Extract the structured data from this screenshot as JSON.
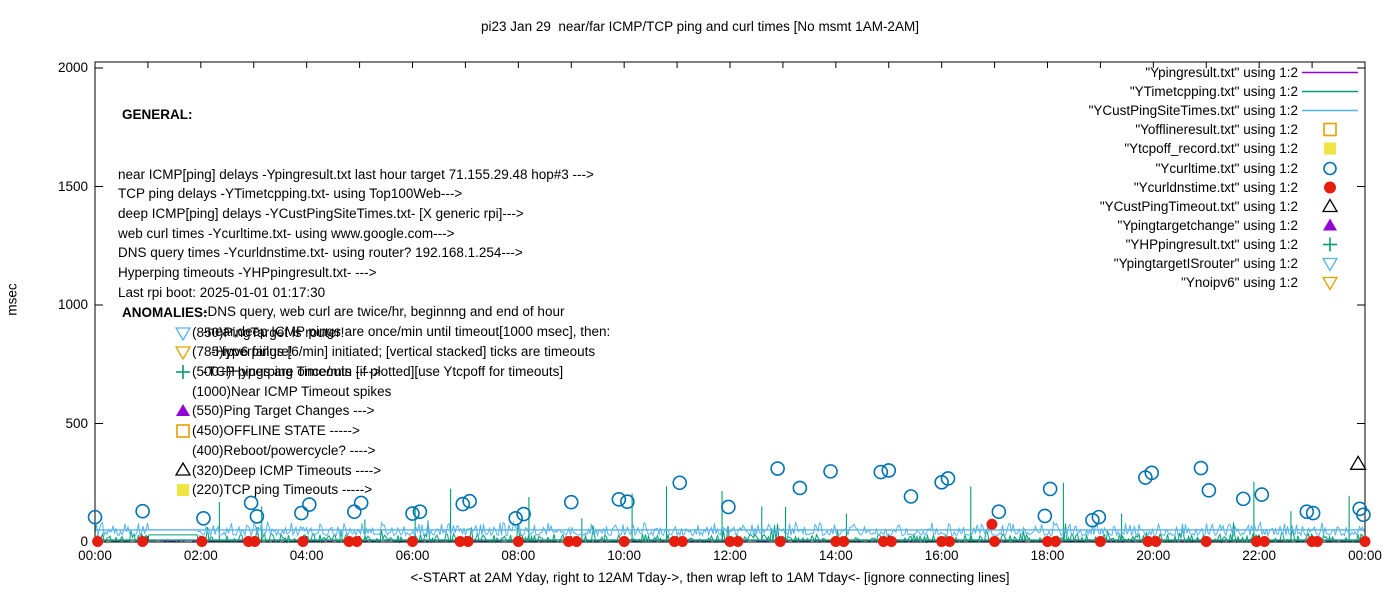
{
  "title": "pi23 Jan 29  near/far ICMP/TCP ping and curl times [No msmt 1AM-2AM]",
  "axes": {
    "ylabel": "msec",
    "xlabel": "<-START at 2AM Yday, right to 12AM Tday->, then wrap left to 1AM Tday<- [ignore connecting lines]",
    "y_ticks": [
      "0",
      "500",
      "1000",
      "1500",
      "2000"
    ],
    "x_ticks": [
      "00:00",
      "02:00",
      "04:00",
      "06:00",
      "08:00",
      "10:00",
      "12:00",
      "14:00",
      "16:00",
      "18:00",
      "20:00",
      "22:00",
      "00:00"
    ]
  },
  "general": {
    "header": "GENERAL:",
    "lines": [
      {
        "text": "near ICMP[ping] delays -Ypingresult.txt last hour target 71.155.29.48 hop#3 --->",
        "indent": 0
      },
      {
        "text": "TCP ping delays -YTimetcpping.txt- using Top100Web--->",
        "indent": 0
      },
      {
        "text": "deep ICMP[ping] delays -YCustPingSiteTimes.txt- [X generic rpi]--->",
        "indent": 0
      },
      {
        "text": "web curl times -Ycurltime.txt- using www.google.com--->",
        "indent": 0
      },
      {
        "text": "DNS query times -Ycurldnstime.txt- using router? 192.168.1.254--->",
        "indent": 0
      },
      {
        "text": "Hyperping timeouts -YHPpingresult.txt- --->",
        "indent": 0
      },
      {
        "text": "Last rpi boot: 2025-01-01 01:17:30",
        "indent": 0
      },
      {
        "text": "-DNS query, web curl are twice/hr, beginnng and end of hour",
        "indent": 1
      },
      {
        "text": "-near,deep ICMP pings are once/min until timeout[1000 msec], then:",
        "indent": 1
      },
      {
        "text": "-Hyperpings [6/min] initiated; [vertical stacked] ticks are timeouts",
        "indent": 2
      },
      {
        "text": "-TCP pings are once/min [if plotted][use Ytcpoff for timeouts]",
        "indent": 1
      }
    ]
  },
  "anomalies": {
    "header": "ANOMALIES:",
    "rows": [
      {
        "marker": "triangle-down-open",
        "color": "#56b4e9",
        "text": "(850)PingTarget is router!"
      },
      {
        "marker": "triangle-down-open",
        "color": "#e69f00",
        "text": "(785)ipv6 failure!"
      },
      {
        "marker": "plus",
        "color": "#009e73",
        "text": "(500+)Hyperping Timeouts ---->"
      },
      {
        "marker": "none",
        "color": "",
        "text": "(1000)Near ICMP Timeout spikes"
      },
      {
        "marker": "triangle-filled",
        "color": "#9400d3",
        "text": "(550)Ping Target Changes --->"
      },
      {
        "marker": "square-open",
        "color": "#e69f00",
        "text": "(450)OFFLINE STATE ----->"
      },
      {
        "marker": "none",
        "color": "",
        "text": "(400)Reboot/powercycle? ---->"
      },
      {
        "marker": "triangle-open",
        "color": "#000000",
        "text": "(320)Deep ICMP Timeouts ---->"
      },
      {
        "marker": "square-filled",
        "color": "#f0e442",
        "text": "(220)TCP ping Timeouts ----->"
      }
    ]
  },
  "legend": {
    "rows": [
      {
        "label": "\"Ypingresult.txt\" using 1:2",
        "marker": "line",
        "color": "#9400d3"
      },
      {
        "label": "\"YTimetcpping.txt\" using 1:2",
        "marker": "line",
        "color": "#009e73"
      },
      {
        "label": "\"YCustPingSiteTimes.txt\" using 1:2",
        "marker": "line",
        "color": "#56b4e9"
      },
      {
        "label": "\"Yofflineresult.txt\" using 1:2",
        "marker": "square-open",
        "color": "#e69f00"
      },
      {
        "label": "\"Ytcpoff_record.txt\" using 1:2",
        "marker": "square-filled",
        "color": "#f0e442"
      },
      {
        "label": "\"Ycurltime.txt\" using 1:2",
        "marker": "circle-open",
        "color": "#0072b2"
      },
      {
        "label": "\"Ycurldnstime.txt\" using 1:2",
        "marker": "circle-filled",
        "color": "#e51e10"
      },
      {
        "label": "\"YCustPingTimeout.txt\" using 1:2",
        "marker": "triangle-open",
        "color": "#000000"
      },
      {
        "label": "\"Ypingtargetchange\" using 1:2",
        "marker": "triangle-filled",
        "color": "#9400d3"
      },
      {
        "label": "\"YHPpingresult.txt\" using 1:2",
        "marker": "plus",
        "color": "#009e73"
      },
      {
        "label": "\"YpingtargetISrouter\" using 1:2",
        "marker": "triangle-down-open",
        "color": "#56b4e9"
      },
      {
        "label": "\"Ynoipv6\" using 1:2",
        "marker": "triangle-down-open",
        "color": "#e69f00"
      }
    ]
  },
  "chart_data": {
    "type": "line",
    "title": "pi23 Jan 29  near/far ICMP/TCP ping and curl times [No msmt 1AM-2AM]",
    "xlabel": "<-START at 2AM Yday, right to 12AM Tday->, then wrap left to 1AM Tday<- [ignore connecting lines]",
    "ylabel": "msec",
    "x_axis": {
      "tick_hours": [
        0,
        2,
        4,
        6,
        8,
        10,
        12,
        14,
        16,
        18,
        20,
        22,
        24
      ],
      "minor_tick_every_hours": 1,
      "span_hours": 24
    },
    "y_axis": {
      "tick_values": [
        0,
        500,
        1000,
        1500,
        2000
      ],
      "range": [
        0,
        2000
      ]
    },
    "grid": false,
    "legend_position": "inside-top-right",
    "no_measurement_gap_hours": [
      1.0,
      1.95
    ],
    "series": [
      {
        "name": "\"Ypingresult.txt\" using 1:2",
        "style": "line",
        "color": "#9400d3",
        "description": "near ICMP ping delays, flat baseline",
        "noise_band_msec": [
          0,
          9
        ]
      },
      {
        "name": "\"YTimetcpping.txt\" using 1:2",
        "style": "line",
        "color": "#009e73",
        "description": "TCP ping delays, grassy baseline with spikes",
        "noise_band_msec": [
          0,
          36
        ],
        "gap_flat_value": 30,
        "floor_line": 8,
        "spikes": [
          [
            2.35,
            168
          ],
          [
            3.15,
            150
          ],
          [
            5.1,
            95
          ],
          [
            6.05,
            150
          ],
          [
            6.72,
            225
          ],
          [
            8.2,
            190
          ],
          [
            9.2,
            100
          ],
          [
            10.15,
            205
          ],
          [
            10.8,
            235
          ],
          [
            11.85,
            215
          ],
          [
            12.6,
            150
          ],
          [
            13.05,
            148
          ],
          [
            14.2,
            120
          ],
          [
            16.55,
            235
          ],
          [
            18.3,
            250
          ],
          [
            19.4,
            120
          ],
          [
            21.9,
            255
          ],
          [
            22.6,
            130
          ],
          [
            23.7,
            195
          ]
        ]
      },
      {
        "name": "\"YCustPingSiteTimes.txt\" using 1:2",
        "style": "line",
        "color": "#56b4e9",
        "description": "deep ICMP ping delays, grassy band plus flat line",
        "noise_band_msec": [
          28,
          95
        ],
        "flat_level": 51
      },
      {
        "name": "\"Yofflineresult.txt\" using 1:2",
        "style": "square-open",
        "color": "#e69f00",
        "points": []
      },
      {
        "name": "\"Ytcpoff_record.txt\" using 1:2",
        "style": "square-filled",
        "color": "#f0e442",
        "points": []
      },
      {
        "name": "\"Ycurltime.txt\" using 1:2",
        "style": "circle-open",
        "color": "#0072b2",
        "points": [
          [
            0.0,
            105
          ],
          [
            0.9,
            130
          ],
          [
            2.05,
            100
          ],
          [
            2.95,
            165
          ],
          [
            3.06,
            108
          ],
          [
            3.9,
            122
          ],
          [
            4.05,
            158
          ],
          [
            4.9,
            128
          ],
          [
            5.03,
            165
          ],
          [
            6.0,
            120
          ],
          [
            6.14,
            128
          ],
          [
            6.95,
            160
          ],
          [
            7.08,
            172
          ],
          [
            7.95,
            100
          ],
          [
            8.1,
            118
          ],
          [
            9.0,
            168
          ],
          [
            9.9,
            180
          ],
          [
            10.06,
            170
          ],
          [
            11.05,
            250
          ],
          [
            11.97,
            148
          ],
          [
            12.9,
            310
          ],
          [
            13.32,
            228
          ],
          [
            13.9,
            298
          ],
          [
            14.85,
            295
          ],
          [
            15.0,
            302
          ],
          [
            15.42,
            192
          ],
          [
            16.0,
            252
          ],
          [
            16.12,
            268
          ],
          [
            17.08,
            128
          ],
          [
            17.95,
            110
          ],
          [
            18.05,
            224
          ],
          [
            18.85,
            92
          ],
          [
            18.97,
            105
          ],
          [
            19.85,
            272
          ],
          [
            19.97,
            292
          ],
          [
            20.9,
            312
          ],
          [
            21.05,
            218
          ],
          [
            21.7,
            182
          ],
          [
            22.05,
            200
          ],
          [
            22.9,
            128
          ],
          [
            23.02,
            122
          ],
          [
            23.9,
            140
          ],
          [
            23.97,
            115
          ]
        ]
      },
      {
        "name": "\"Ycurldnstime.txt\" using 1:2",
        "style": "circle-filled",
        "color": "#e51e10",
        "points": [
          [
            0.05,
            2
          ],
          [
            0.9,
            2
          ],
          [
            2.02,
            2
          ],
          [
            2.9,
            2
          ],
          [
            3.02,
            2
          ],
          [
            3.93,
            2
          ],
          [
            4.8,
            2
          ],
          [
            4.95,
            2
          ],
          [
            6.0,
            2
          ],
          [
            6.9,
            2
          ],
          [
            7.05,
            2
          ],
          [
            8.0,
            2
          ],
          [
            8.95,
            2
          ],
          [
            9.1,
            2
          ],
          [
            10.0,
            2
          ],
          [
            10.95,
            2
          ],
          [
            11.1,
            2
          ],
          [
            12.0,
            2
          ],
          [
            12.15,
            2
          ],
          [
            12.95,
            2
          ],
          [
            14.0,
            2
          ],
          [
            14.15,
            2
          ],
          [
            14.9,
            2
          ],
          [
            15.05,
            2
          ],
          [
            16.0,
            2
          ],
          [
            16.15,
            2
          ],
          [
            16.95,
            75
          ],
          [
            17.0,
            2
          ],
          [
            18.0,
            2
          ],
          [
            18.15,
            2
          ],
          [
            19.0,
            2
          ],
          [
            19.9,
            2
          ],
          [
            20.05,
            2
          ],
          [
            21.0,
            2
          ],
          [
            21.95,
            2
          ],
          [
            22.1,
            2
          ],
          [
            23.0,
            2
          ],
          [
            23.1,
            2
          ],
          [
            24.0,
            2
          ]
        ]
      },
      {
        "name": "\"YCustPingTimeout.txt\" using 1:2",
        "style": "triangle-open",
        "color": "#000000",
        "points": [
          [
            23.87,
            330
          ]
        ]
      },
      {
        "name": "\"Ypingtargetchange\" using 1:2",
        "style": "triangle-filled",
        "color": "#9400d3",
        "points": []
      },
      {
        "name": "\"YHPpingresult.txt\" using 1:2",
        "style": "plus",
        "color": "#009e73",
        "points": []
      },
      {
        "name": "\"YpingtargetISrouter\" using 1:2",
        "style": "triangle-down-open",
        "color": "#56b4e9",
        "points": []
      },
      {
        "name": "\"Ynoipv6\" using 1:2",
        "style": "triangle-down-open",
        "color": "#e69f00",
        "points": []
      }
    ]
  }
}
